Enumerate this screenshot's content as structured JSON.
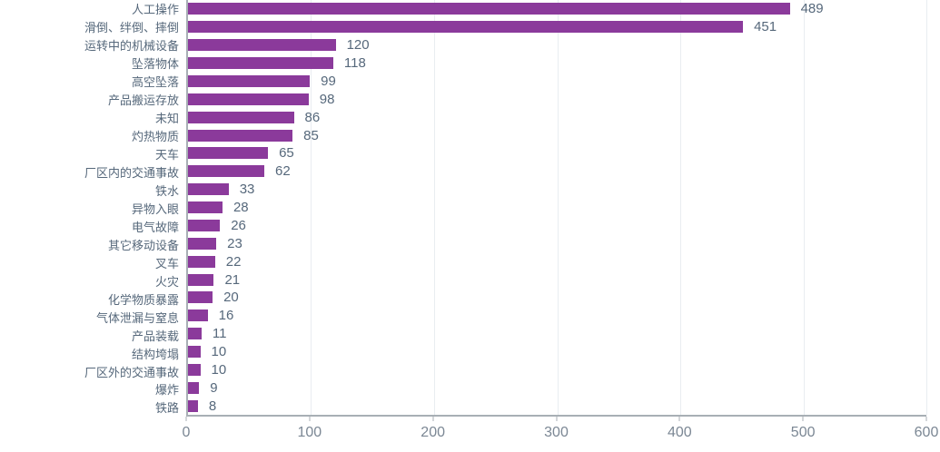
{
  "chart_data": {
    "type": "bar",
    "orientation": "horizontal",
    "title": "",
    "xlabel": "",
    "ylabel": "",
    "categories": [
      "人工操作",
      "滑倒、绊倒、摔倒",
      "运转中的机械设备",
      "坠落物体",
      "高空坠落",
      "产品搬运存放",
      "未知",
      "灼热物质",
      "天车",
      "厂区内的交通事故",
      "铁水",
      "异物入眼",
      "电气故障",
      "其它移动设备",
      "叉车",
      "火灾",
      "化学物质暴露",
      "气体泄漏与窒息",
      "产品装载",
      "结构垮塌",
      "厂区外的交通事故",
      "爆炸",
      "铁路"
    ],
    "values": [
      489,
      451,
      120,
      118,
      99,
      98,
      86,
      85,
      65,
      62,
      33,
      28,
      26,
      23,
      22,
      21,
      20,
      16,
      11,
      10,
      10,
      9,
      8
    ],
    "data_labels_shown": true,
    "xlim": [
      0,
      600
    ],
    "x_ticks": [
      0,
      100,
      200,
      300,
      400,
      500,
      600
    ],
    "grid": true,
    "legend": "none",
    "colors": {
      "bar": "#8B3A9B",
      "category_label_text": "#56687B",
      "value_label_text": "#56687B",
      "tick_label_text": "#7B8794",
      "axis_line": "#A8AFB5",
      "gridline": "#E9EDF1",
      "background": "#FFFFFF"
    }
  }
}
